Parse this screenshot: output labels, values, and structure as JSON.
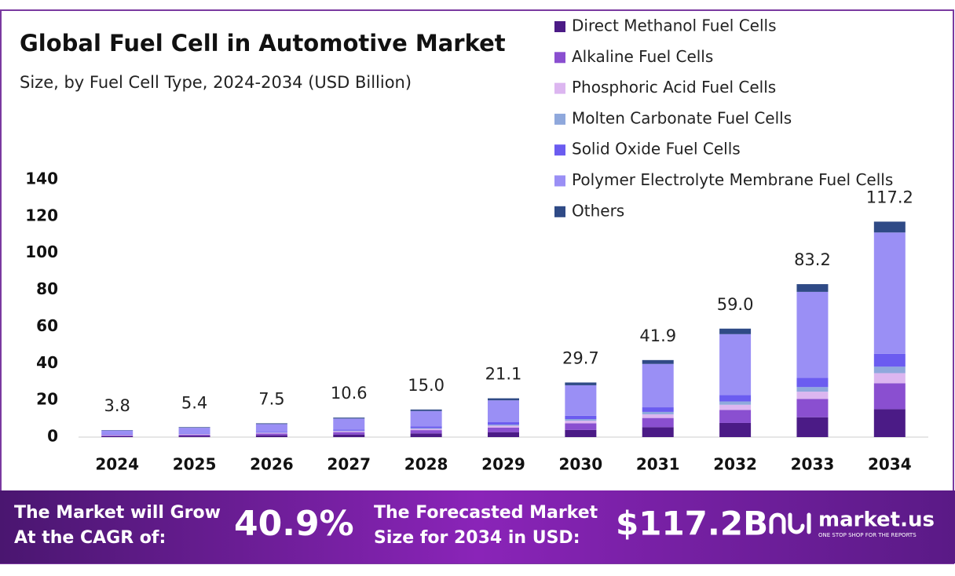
{
  "chart_data": {
    "type": "stacked-bar",
    "title": "Global Fuel Cell in Automotive Market",
    "subtitle": "Size, by Fuel Cell Type, 2024-2034 (USD Billion)",
    "categories": [
      "2024",
      "2025",
      "2026",
      "2027",
      "2028",
      "2029",
      "2030",
      "2031",
      "2032",
      "2033",
      "2034"
    ],
    "series": [
      {
        "name": "Direct Methanol Fuel Cells",
        "color": "#4b1b86",
        "values": [
          0.5,
          0.7,
          1.0,
          1.4,
          2.0,
          2.7,
          3.9,
          5.4,
          7.7,
          10.8,
          15.2
        ]
      },
      {
        "name": "Alkaline Fuel Cells",
        "color": "#8a4fd0",
        "values": [
          0.5,
          0.6,
          0.9,
          1.3,
          1.8,
          2.5,
          3.6,
          5.0,
          7.1,
          10.0,
          14.1
        ]
      },
      {
        "name": "Phosphoric Acid Fuel Cells",
        "color": "#dcb6f0",
        "values": [
          0.2,
          0.3,
          0.4,
          0.5,
          0.7,
          1.0,
          1.4,
          2.0,
          2.8,
          3.9,
          5.5
        ]
      },
      {
        "name": "Molten Carbonate Fuel Cells",
        "color": "#8fa8dc",
        "values": [
          0.1,
          0.2,
          0.2,
          0.3,
          0.4,
          0.6,
          0.9,
          1.3,
          1.8,
          2.5,
          3.5
        ]
      },
      {
        "name": "Solid Oxide Fuel Cells",
        "color": "#6b5cf0",
        "values": [
          0.2,
          0.3,
          0.4,
          0.6,
          0.9,
          1.3,
          1.8,
          2.5,
          3.5,
          5.0,
          7.0
        ]
      },
      {
        "name": "Polymer Electrolyte Membrane Fuel Cells",
        "color": "#9a8ff5",
        "values": [
          2.1,
          3.0,
          4.2,
          6.0,
          8.4,
          11.9,
          16.6,
          23.6,
          33.1,
          46.8,
          66.0
        ]
      },
      {
        "name": "Others",
        "color": "#2f4a86",
        "values": [
          0.2,
          0.3,
          0.4,
          0.5,
          0.8,
          1.1,
          1.5,
          2.1,
          3.0,
          4.2,
          5.9
        ]
      }
    ],
    "totals": {
      "values": [
        3.8,
        5.4,
        7.5,
        10.6,
        15.0,
        21.1,
        29.7,
        41.9,
        59.0,
        83.2,
        117.2
      ],
      "value_labels": [
        "3.8",
        "5.4",
        "7.5",
        "10.6",
        "15.0",
        "21.1",
        "29.7",
        "41.9",
        "59.0",
        "83.2",
        "117.2"
      ]
    },
    "ylim": [
      0,
      140
    ],
    "yticks": [
      0,
      20,
      40,
      60,
      80,
      100,
      120,
      140
    ],
    "grid": false,
    "legend": "top-right"
  },
  "footer": {
    "cagr_text": [
      "The Market will Grow",
      "At the CAGR of:"
    ],
    "cagr": "40.9%",
    "forecast_text": [
      "The Forecasted Market",
      "Size for 2034 in USD:"
    ],
    "forecast": "$117.2B",
    "brand": "market.us",
    "tagline": "ONE STOP SHOP FOR THE REPORTS"
  }
}
